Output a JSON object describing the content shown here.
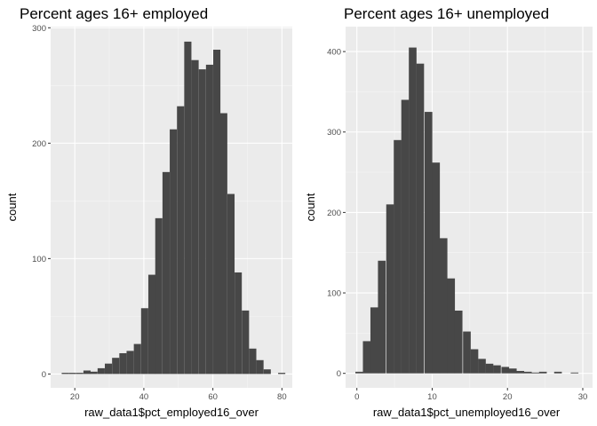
{
  "chart_data": [
    {
      "type": "bar",
      "title": "Percent ages 16+ employed",
      "xlabel": "raw_data1$pct_employed16_over",
      "ylabel": "count",
      "xlim": [
        13,
        83
      ],
      "ylim": [
        -12,
        301
      ],
      "binwidth": 2.08,
      "x_ticks": [
        20,
        40,
        60,
        80
      ],
      "y_ticks": [
        0,
        100,
        200,
        300
      ],
      "x_tick_labels": [
        "20",
        "40",
        "60",
        "80"
      ],
      "y_tick_labels": [
        "0",
        "100",
        "200",
        "300"
      ],
      "grid": true,
      "background": "#ebebeb",
      "bar_color": "#474747",
      "bins": [
        {
          "x0": 16.2,
          "count": 1
        },
        {
          "x0": 18.3,
          "count": 1
        },
        {
          "x0": 20.4,
          "count": 1
        },
        {
          "x0": 22.5,
          "count": 3
        },
        {
          "x0": 24.5,
          "count": 2
        },
        {
          "x0": 26.6,
          "count": 5
        },
        {
          "x0": 28.7,
          "count": 9
        },
        {
          "x0": 30.8,
          "count": 14
        },
        {
          "x0": 32.9,
          "count": 18
        },
        {
          "x0": 35.0,
          "count": 20
        },
        {
          "x0": 37.1,
          "count": 26
        },
        {
          "x0": 39.2,
          "count": 57
        },
        {
          "x0": 41.3,
          "count": 86
        },
        {
          "x0": 43.3,
          "count": 135
        },
        {
          "x0": 45.4,
          "count": 175
        },
        {
          "x0": 47.5,
          "count": 212
        },
        {
          "x0": 49.6,
          "count": 232
        },
        {
          "x0": 51.7,
          "count": 288
        },
        {
          "x0": 53.8,
          "count": 272
        },
        {
          "x0": 55.9,
          "count": 264
        },
        {
          "x0": 58.0,
          "count": 268
        },
        {
          "x0": 60.1,
          "count": 281
        },
        {
          "x0": 62.1,
          "count": 226
        },
        {
          "x0": 64.2,
          "count": 156
        },
        {
          "x0": 66.3,
          "count": 88
        },
        {
          "x0": 68.4,
          "count": 55
        },
        {
          "x0": 70.5,
          "count": 22
        },
        {
          "x0": 72.6,
          "count": 12
        },
        {
          "x0": 74.7,
          "count": 4
        },
        {
          "x0": 78.9,
          "count": 1
        }
      ]
    },
    {
      "type": "bar",
      "title": "Percent ages 16+ unemployed",
      "xlabel": "raw_data1$pct_unemployed16_over",
      "ylabel": "count",
      "xlim": [
        -1.5,
        31.3
      ],
      "ylim": [
        -18,
        431
      ],
      "binwidth": 1.02,
      "x_ticks": [
        0,
        10,
        20,
        30
      ],
      "y_ticks": [
        0,
        100,
        200,
        300,
        400
      ],
      "x_tick_labels": [
        "0",
        "10",
        "20",
        "30"
      ],
      "y_tick_labels": [
        "0",
        "100",
        "200",
        "300",
        "400"
      ],
      "grid": true,
      "background": "#ebebeb",
      "bar_color": "#474747",
      "bins": [
        {
          "x0": -0.2,
          "count": 2
        },
        {
          "x0": 0.8,
          "count": 40
        },
        {
          "x0": 1.8,
          "count": 82
        },
        {
          "x0": 2.8,
          "count": 140
        },
        {
          "x0": 3.9,
          "count": 210
        },
        {
          "x0": 4.9,
          "count": 290
        },
        {
          "x0": 5.9,
          "count": 340
        },
        {
          "x0": 6.9,
          "count": 405
        },
        {
          "x0": 7.9,
          "count": 385
        },
        {
          "x0": 9.0,
          "count": 325
        },
        {
          "x0": 10.0,
          "count": 262
        },
        {
          "x0": 11.0,
          "count": 168
        },
        {
          "x0": 12.0,
          "count": 118
        },
        {
          "x0": 13.0,
          "count": 78
        },
        {
          "x0": 14.1,
          "count": 52
        },
        {
          "x0": 15.1,
          "count": 30
        },
        {
          "x0": 16.1,
          "count": 18
        },
        {
          "x0": 17.1,
          "count": 12
        },
        {
          "x0": 18.1,
          "count": 10
        },
        {
          "x0": 19.2,
          "count": 8
        },
        {
          "x0": 20.2,
          "count": 6
        },
        {
          "x0": 21.2,
          "count": 3
        },
        {
          "x0": 22.2,
          "count": 2
        },
        {
          "x0": 23.2,
          "count": 1
        },
        {
          "x0": 24.2,
          "count": 2
        },
        {
          "x0": 26.2,
          "count": 2
        },
        {
          "x0": 28.4,
          "count": 1
        }
      ]
    }
  ]
}
